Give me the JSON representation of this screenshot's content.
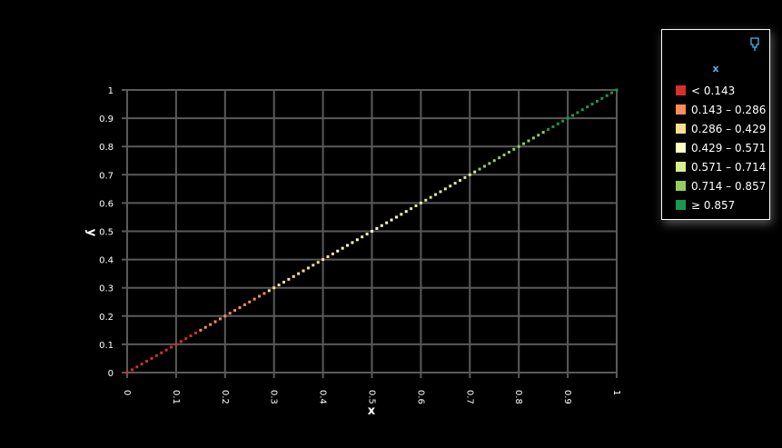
{
  "chart_data": {
    "type": "scatter",
    "title": "",
    "xlabel": "x",
    "ylabel": "y",
    "xlim": [
      0,
      1
    ],
    "ylim": [
      0,
      1
    ],
    "grid": true,
    "x_ticks": [
      "0",
      "0.1",
      "0.2",
      "0.3",
      "0.4",
      "0.5",
      "0.6",
      "0.7",
      "0.8",
      "0.9",
      "1"
    ],
    "y_ticks": [
      "0",
      "0.1",
      "0.2",
      "0.3",
      "0.4",
      "0.5",
      "0.6",
      "0.7",
      "0.8",
      "0.9",
      "1"
    ],
    "points": {
      "x_start": 0,
      "x_end": 1,
      "step": 0.01,
      "y_equals_x": true
    },
    "color_by": "x",
    "legend": {
      "position": "top-right",
      "title": "x",
      "items": [
        {
          "label": "< 0.143",
          "color": "#d73027",
          "max": 0.143
        },
        {
          "label": "0.143 – 0.286",
          "color": "#fc8d59",
          "max": 0.286
        },
        {
          "label": "0.286 – 0.429",
          "color": "#fee08b",
          "max": 0.429
        },
        {
          "label": "0.429 – 0.571",
          "color": "#ffffbf",
          "max": 0.571
        },
        {
          "label": "0.571 – 0.714",
          "color": "#d9ef8b",
          "max": 0.714
        },
        {
          "label": "0.714 – 0.857",
          "color": "#91cf60",
          "max": 0.857
        },
        {
          "label": "≥ 0.857",
          "color": "#1a9850",
          "max": 1.01
        }
      ]
    },
    "colors": {
      "background": "#000000",
      "grid": "#5a5a5a",
      "text": "#ffffff",
      "legend_title": "#4fb3e8",
      "pin_icon": "#4fb3e8"
    }
  }
}
